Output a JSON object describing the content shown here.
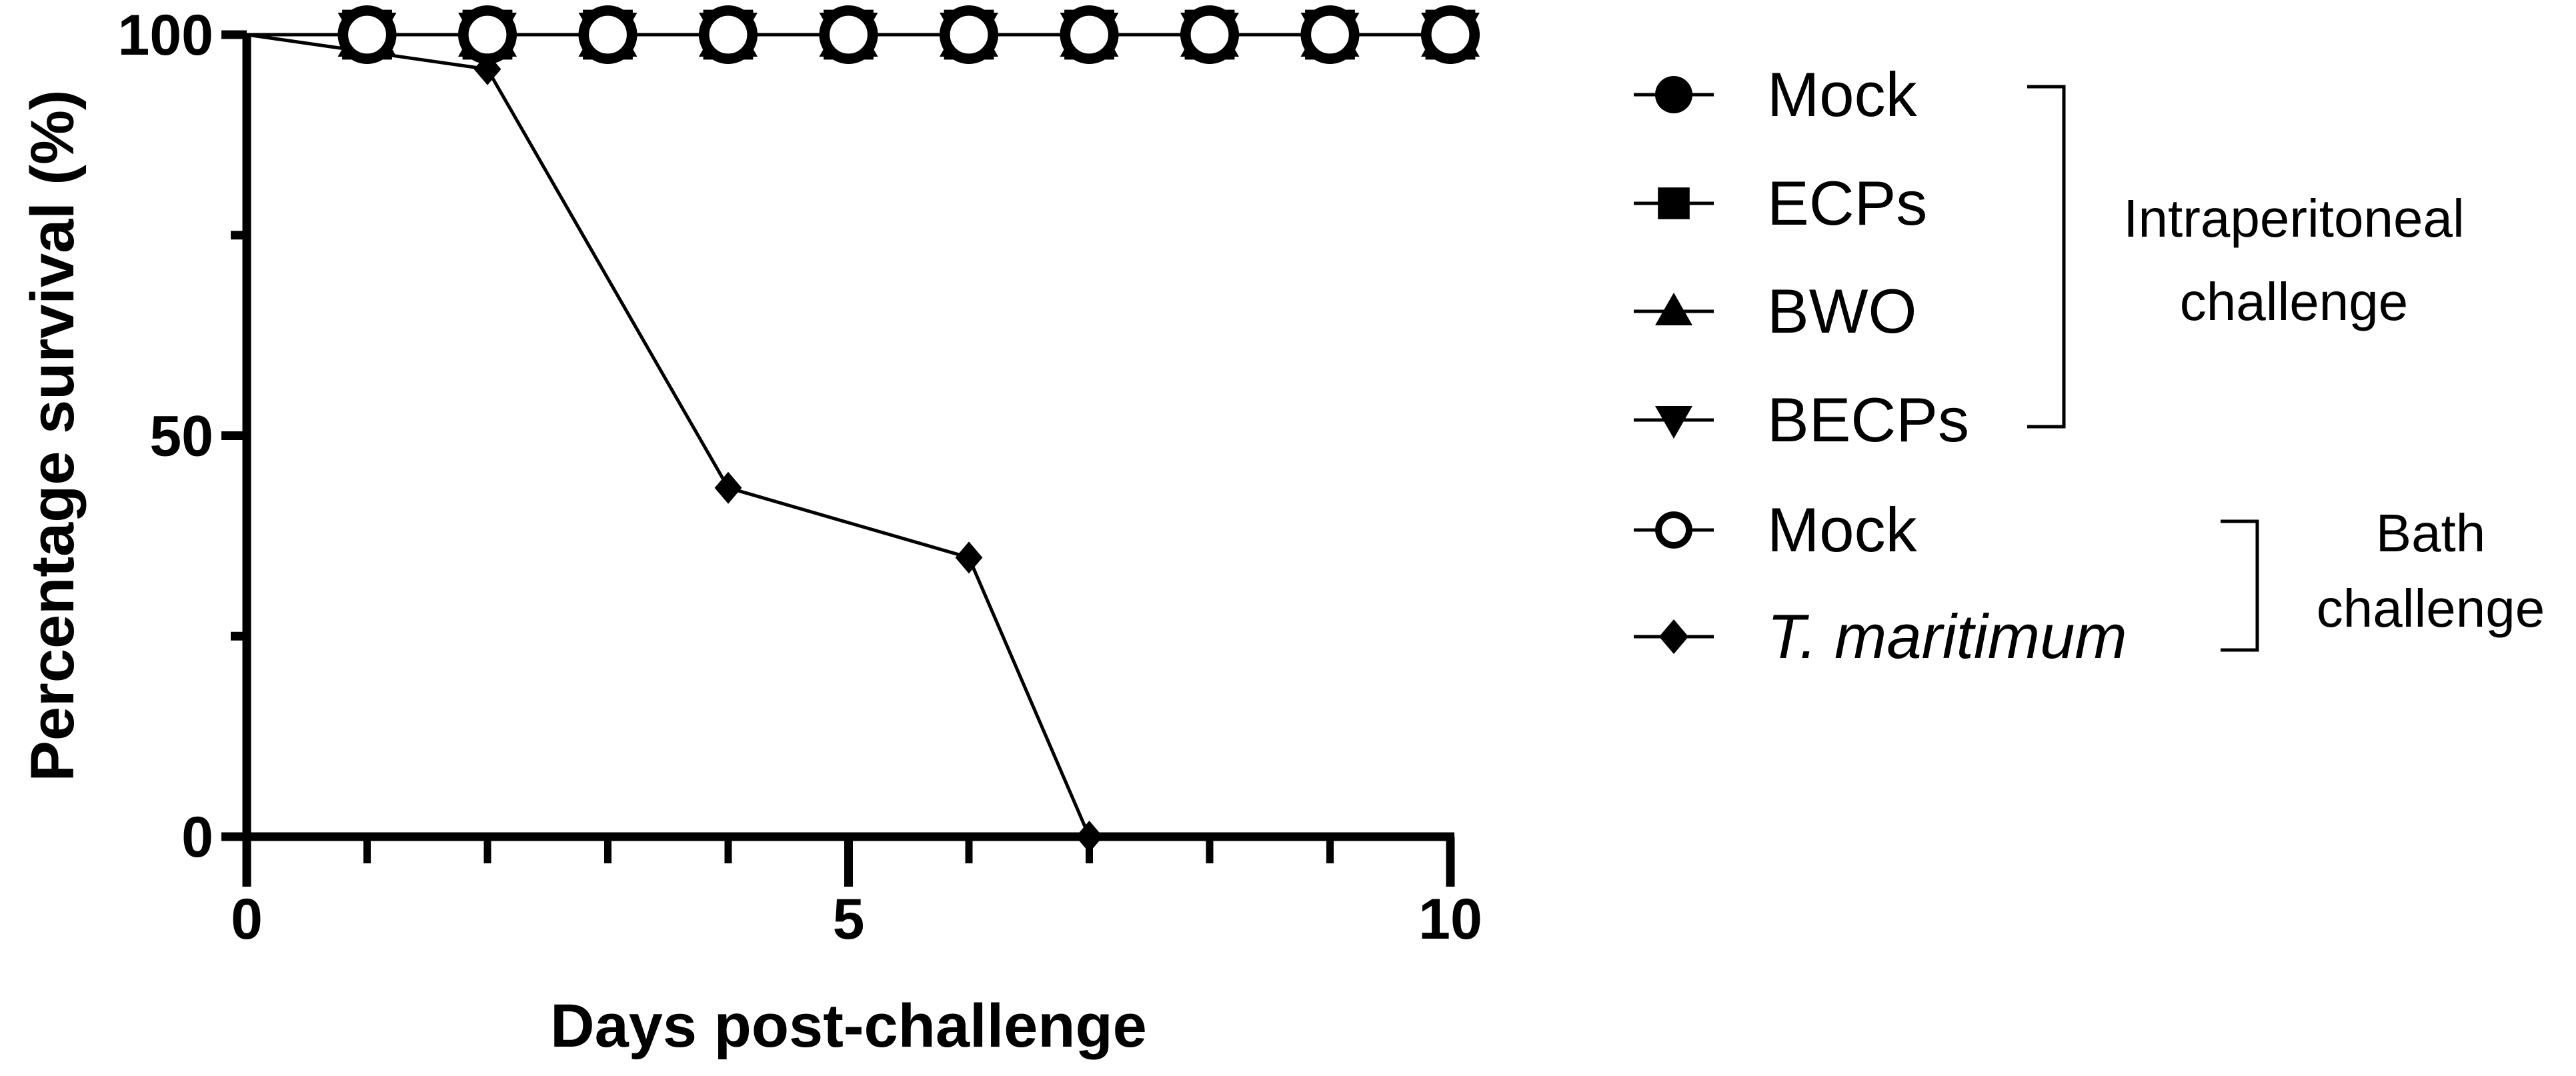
{
  "chart_data": {
    "type": "line",
    "title": "",
    "xlabel": "Days post-challenge",
    "ylabel": "Percentage survival (%)",
    "xlim": [
      0,
      10
    ],
    "ylim": [
      0,
      100
    ],
    "x_major_ticks": [
      "0",
      "5",
      "10"
    ],
    "y_major_ticks": [
      "0",
      "50",
      "100"
    ],
    "grid": false,
    "legend_position": "right",
    "series": [
      {
        "name": "Mock",
        "marker": "circle",
        "group": "Intraperitoneal challenge",
        "x": [
          0,
          1,
          2,
          3,
          4,
          5,
          6,
          7,
          8,
          9,
          10
        ],
        "y": [
          100,
          100,
          100,
          100,
          100,
          100,
          100,
          100,
          100,
          100,
          100
        ]
      },
      {
        "name": "ECPs",
        "marker": "square",
        "group": "Intraperitoneal challenge",
        "x": [
          0,
          1,
          2,
          3,
          4,
          5,
          6,
          7,
          8,
          9,
          10
        ],
        "y": [
          100,
          100,
          100,
          100,
          100,
          100,
          100,
          100,
          100,
          100,
          100
        ]
      },
      {
        "name": "BWO",
        "marker": "triangle-up",
        "group": "Intraperitoneal challenge",
        "x": [
          0,
          1,
          2,
          3,
          4,
          5,
          6,
          7,
          8,
          9,
          10
        ],
        "y": [
          100,
          100,
          100,
          100,
          100,
          100,
          100,
          100,
          100,
          100,
          100
        ]
      },
      {
        "name": "BECPs",
        "marker": "triangle-down",
        "group": "Intraperitoneal challenge",
        "x": [
          0,
          1,
          2,
          3,
          4,
          5,
          6,
          7,
          8,
          9,
          10
        ],
        "y": [
          100,
          100,
          100,
          100,
          100,
          100,
          100,
          100,
          100,
          100,
          100
        ]
      },
      {
        "name": "Mock",
        "marker": "circle-open",
        "group": "Bath challenge",
        "x": [
          0,
          1,
          2,
          3,
          4,
          5,
          6,
          7,
          8,
          9,
          10
        ],
        "y": [
          100,
          100,
          100,
          100,
          100,
          100,
          100,
          100,
          100,
          100,
          100
        ]
      },
      {
        "name": "T. maritimum",
        "marker": "diamond",
        "italic": true,
        "group": "Bath challenge",
        "x": [
          0,
          2,
          4,
          6,
          7
        ],
        "y": [
          100,
          95.7,
          43.5,
          34.8,
          0
        ]
      }
    ],
    "legend_groups": [
      {
        "label_lines": [
          "Intraperitoneal",
          "challenge"
        ],
        "members": [
          0,
          1,
          2,
          3
        ]
      },
      {
        "label_lines": [
          "Bath",
          "challenge"
        ],
        "members": [
          4,
          5
        ]
      }
    ],
    "color": "#000000"
  }
}
